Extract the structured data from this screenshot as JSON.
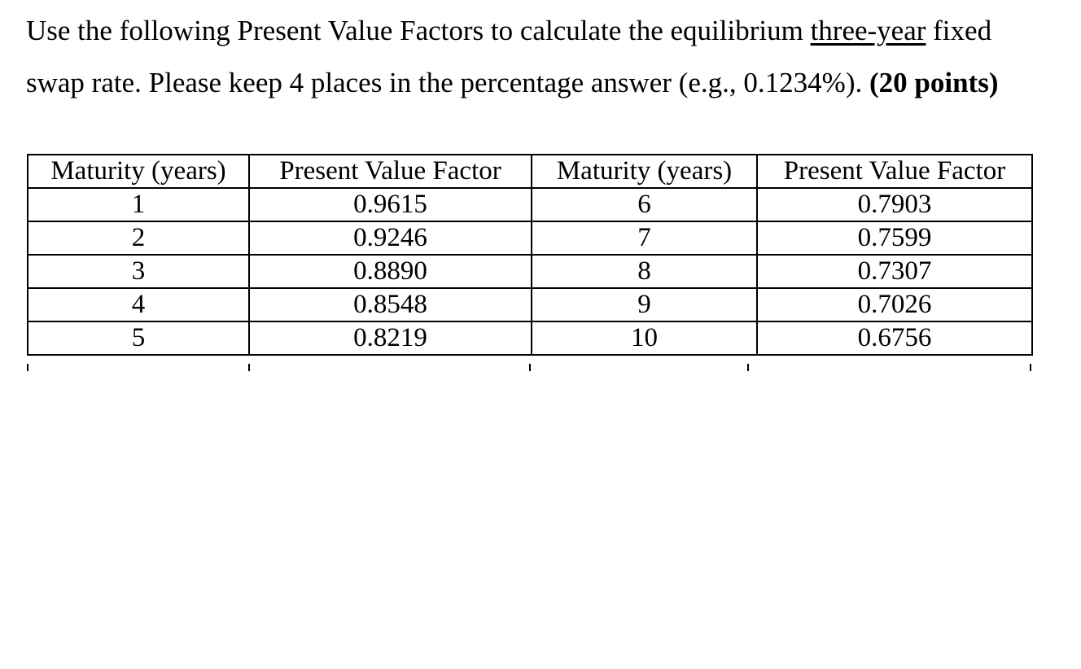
{
  "question": {
    "line1": [
      {
        "text": "Use the following Present Value Factors to calculate the equilibrium ",
        "style": "normal"
      },
      {
        "text": "three-year",
        "style": "underline"
      },
      {
        "text": " fixed",
        "style": "normal"
      }
    ],
    "line2": [
      {
        "text": "swap rate. Please keep 4 places in the percentage answer (e.g., 0.1234%). ",
        "style": "normal"
      },
      {
        "text": "(20 points)",
        "style": "bold"
      }
    ]
  },
  "table": {
    "headers": [
      "Maturity (years)",
      "Present Value Factor",
      "Maturity (years)",
      "Present Value Factor"
    ],
    "rows": [
      [
        "1",
        "0.9615",
        "6",
        "0.7903"
      ],
      [
        "2",
        "0.9246",
        "7",
        "0.7599"
      ],
      [
        "3",
        "0.8890",
        "8",
        "0.7307"
      ],
      [
        "4",
        "0.8548",
        "9",
        "0.7026"
      ],
      [
        "5",
        "0.8219",
        "10",
        "0.6756"
      ]
    ]
  },
  "colors": {
    "text": "#000000",
    "background": "#ffffff",
    "table_border": "#000000"
  }
}
